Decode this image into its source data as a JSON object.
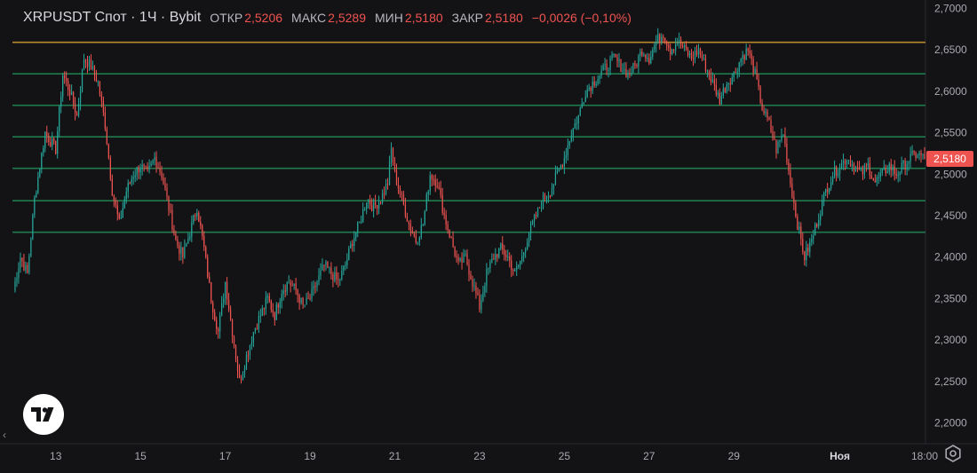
{
  "legend": {
    "symbol": "XRPUSDT Спот · 1Ч · Bybit",
    "open_label": "ОТКР",
    "open_value": "2,5206",
    "high_label": "МАКС",
    "high_value": "2,5289",
    "low_label": "МИН",
    "low_value": "2,5180",
    "close_label": "ЗАКР",
    "close_value": "2,5180",
    "change": "−0,0026 (−0,10%)"
  },
  "last_price": "2,5180",
  "colors": {
    "background": "#131316",
    "up": "#26a69a",
    "down": "#ef5350",
    "level_line": "#1f7a4d",
    "top_level_line": "#b8862b"
  },
  "chart_data": {
    "type": "candlestick",
    "y_range": [
      2.175,
      2.71
    ],
    "y_ticks": [
      "2,7000",
      "2,6500",
      "2,6000",
      "2,5500",
      "2,5000",
      "2,4500",
      "2,4000",
      "2,3500",
      "2,3000",
      "2,2500",
      "2,2000"
    ],
    "y_tick_values": [
      2.7,
      2.65,
      2.6,
      2.55,
      2.5,
      2.45,
      2.4,
      2.35,
      2.3,
      2.25,
      2.2
    ],
    "x_ticks": [
      "13",
      "15",
      "17",
      "19",
      "21",
      "23",
      "25",
      "27",
      "29",
      "Ноя",
      "18:00"
    ],
    "x_tick_index": [
      24,
      72,
      120,
      168,
      216,
      264,
      312,
      360,
      408,
      468,
      516
    ],
    "candle_count": 516,
    "horizontal_levels": [
      2.659,
      2.621,
      2.583,
      2.545,
      2.507,
      2.468,
      2.43
    ],
    "top_level": 2.659,
    "path_anchors": [
      [
        0,
        2.36
      ],
      [
        4,
        2.4
      ],
      [
        8,
        2.38
      ],
      [
        12,
        2.47
      ],
      [
        18,
        2.55
      ],
      [
        24,
        2.53
      ],
      [
        28,
        2.62
      ],
      [
        32,
        2.6
      ],
      [
        36,
        2.57
      ],
      [
        40,
        2.64
      ],
      [
        44,
        2.63
      ],
      [
        48,
        2.61
      ],
      [
        52,
        2.56
      ],
      [
        56,
        2.48
      ],
      [
        60,
        2.44
      ],
      [
        64,
        2.48
      ],
      [
        68,
        2.5
      ],
      [
        72,
        2.51
      ],
      [
        76,
        2.5
      ],
      [
        80,
        2.52
      ],
      [
        84,
        2.5
      ],
      [
        88,
        2.46
      ],
      [
        92,
        2.42
      ],
      [
        96,
        2.4
      ],
      [
        100,
        2.43
      ],
      [
        104,
        2.46
      ],
      [
        108,
        2.41
      ],
      [
        112,
        2.35
      ],
      [
        116,
        2.31
      ],
      [
        120,
        2.37
      ],
      [
        124,
        2.31
      ],
      [
        128,
        2.25
      ],
      [
        132,
        2.28
      ],
      [
        136,
        2.31
      ],
      [
        140,
        2.33
      ],
      [
        144,
        2.35
      ],
      [
        148,
        2.33
      ],
      [
        152,
        2.36
      ],
      [
        156,
        2.37
      ],
      [
        160,
        2.36
      ],
      [
        164,
        2.34
      ],
      [
        168,
        2.35
      ],
      [
        172,
        2.37
      ],
      [
        176,
        2.39
      ],
      [
        180,
        2.38
      ],
      [
        184,
        2.37
      ],
      [
        188,
        2.39
      ],
      [
        192,
        2.42
      ],
      [
        196,
        2.44
      ],
      [
        200,
        2.47
      ],
      [
        204,
        2.46
      ],
      [
        208,
        2.47
      ],
      [
        212,
        2.49
      ],
      [
        214,
        2.53
      ],
      [
        216,
        2.5
      ],
      [
        220,
        2.47
      ],
      [
        224,
        2.44
      ],
      [
        228,
        2.42
      ],
      [
        232,
        2.44
      ],
      [
        236,
        2.5
      ],
      [
        240,
        2.49
      ],
      [
        244,
        2.45
      ],
      [
        248,
        2.42
      ],
      [
        252,
        2.39
      ],
      [
        256,
        2.4
      ],
      [
        260,
        2.37
      ],
      [
        264,
        2.34
      ],
      [
        268,
        2.38
      ],
      [
        272,
        2.4
      ],
      [
        276,
        2.41
      ],
      [
        280,
        2.4
      ],
      [
        284,
        2.38
      ],
      [
        288,
        2.4
      ],
      [
        292,
        2.43
      ],
      [
        296,
        2.45
      ],
      [
        300,
        2.47
      ],
      [
        304,
        2.48
      ],
      [
        308,
        2.5
      ],
      [
        312,
        2.52
      ],
      [
        316,
        2.55
      ],
      [
        320,
        2.57
      ],
      [
        324,
        2.6
      ],
      [
        328,
        2.61
      ],
      [
        332,
        2.62
      ],
      [
        336,
        2.63
      ],
      [
        340,
        2.64
      ],
      [
        344,
        2.63
      ],
      [
        348,
        2.62
      ],
      [
        352,
        2.63
      ],
      [
        356,
        2.65
      ],
      [
        360,
        2.64
      ],
      [
        364,
        2.66
      ],
      [
        368,
        2.67
      ],
      [
        372,
        2.65
      ],
      [
        376,
        2.66
      ],
      [
        380,
        2.65
      ],
      [
        384,
        2.64
      ],
      [
        388,
        2.65
      ],
      [
        392,
        2.63
      ],
      [
        396,
        2.61
      ],
      [
        400,
        2.59
      ],
      [
        404,
        2.61
      ],
      [
        408,
        2.62
      ],
      [
        412,
        2.64
      ],
      [
        416,
        2.65
      ],
      [
        420,
        2.62
      ],
      [
        424,
        2.58
      ],
      [
        428,
        2.56
      ],
      [
        432,
        2.53
      ],
      [
        436,
        2.55
      ],
      [
        440,
        2.49
      ],
      [
        444,
        2.44
      ],
      [
        448,
        2.4
      ],
      [
        452,
        2.42
      ],
      [
        456,
        2.45
      ],
      [
        460,
        2.48
      ],
      [
        464,
        2.5
      ],
      [
        468,
        2.51
      ],
      [
        472,
        2.52
      ],
      [
        476,
        2.51
      ],
      [
        480,
        2.5
      ],
      [
        484,
        2.51
      ],
      [
        488,
        2.49
      ],
      [
        492,
        2.5
      ],
      [
        496,
        2.51
      ],
      [
        500,
        2.5
      ],
      [
        504,
        2.51
      ],
      [
        508,
        2.52
      ],
      [
        512,
        2.525
      ],
      [
        516,
        2.518
      ]
    ]
  },
  "icons": {
    "logo": "tradingview-logo-icon",
    "settings": "settings-icon",
    "scroll": "chevron-left-icon"
  }
}
